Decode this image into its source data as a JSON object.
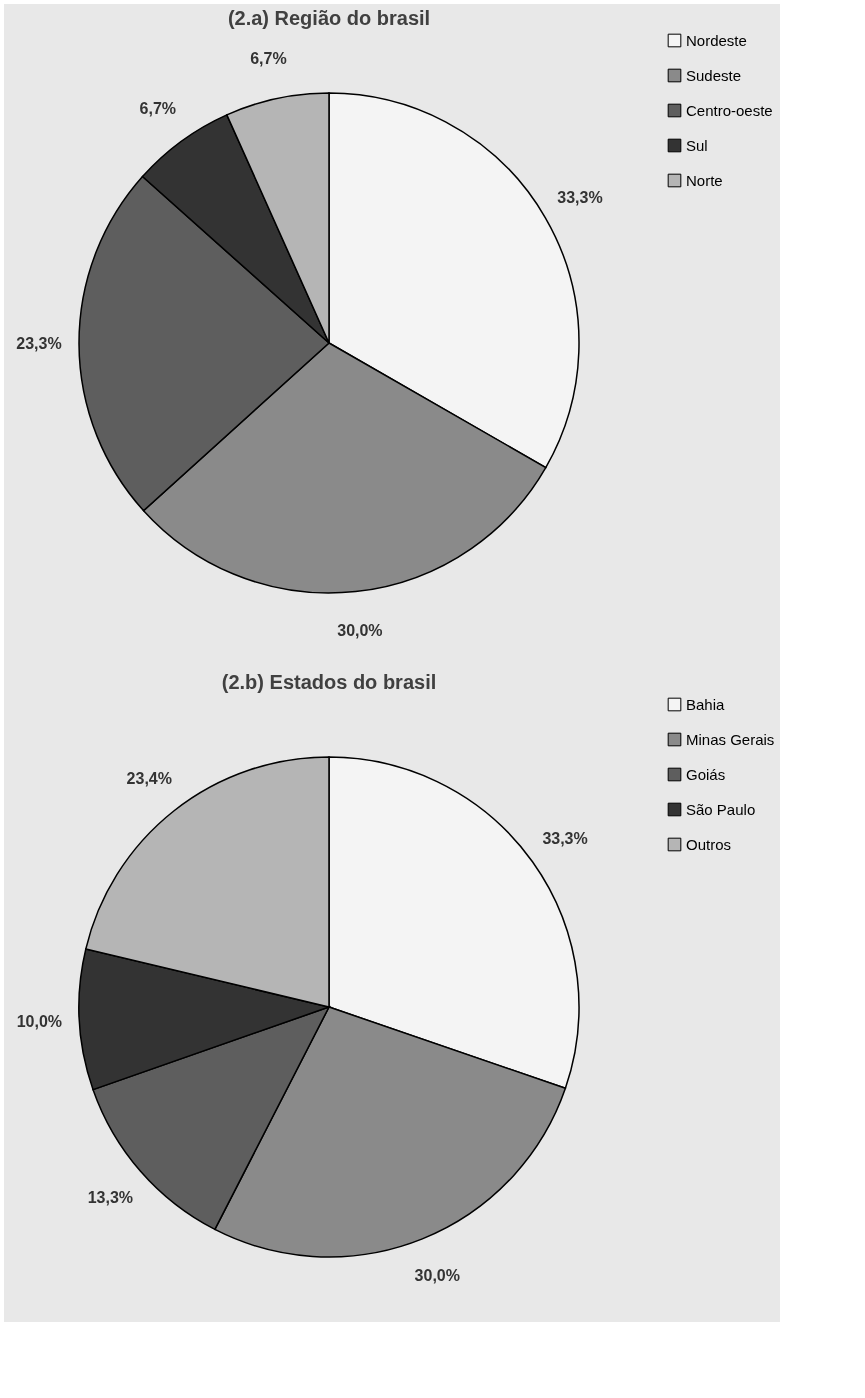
{
  "chart_data": [
    {
      "type": "pie",
      "title": "(2.a)  Região do brasil",
      "categories": [
        "Nordeste",
        "Sudeste",
        "Centro-oeste",
        "Sul",
        "Norte"
      ],
      "values": [
        33.3,
        30.0,
        23.3,
        6.7,
        6.7
      ],
      "value_labels": [
        "33,3%",
        "30,0%",
        "23,3%",
        "6,7%",
        "6,7%"
      ],
      "colors": [
        "#f4f4f4",
        "#8a8a8a",
        "#5e5e5e",
        "#333333",
        "#b5b5b5"
      ],
      "legend": "right"
    },
    {
      "type": "pie",
      "title": "(2.b)  Estados do brasil",
      "categories": [
        "Bahia",
        "Minas Gerais",
        "Goiás",
        "São Paulo",
        "Outros"
      ],
      "values": [
        33.3,
        30.0,
        13.3,
        10.0,
        23.4
      ],
      "value_labels": [
        "33,3%",
        "30,0%",
        "13,3%",
        "10,0%",
        "23,4%"
      ],
      "colors": [
        "#f4f4f4",
        "#8a8a8a",
        "#5e5e5e",
        "#333333",
        "#b5b5b5"
      ],
      "legend": "right"
    }
  ]
}
